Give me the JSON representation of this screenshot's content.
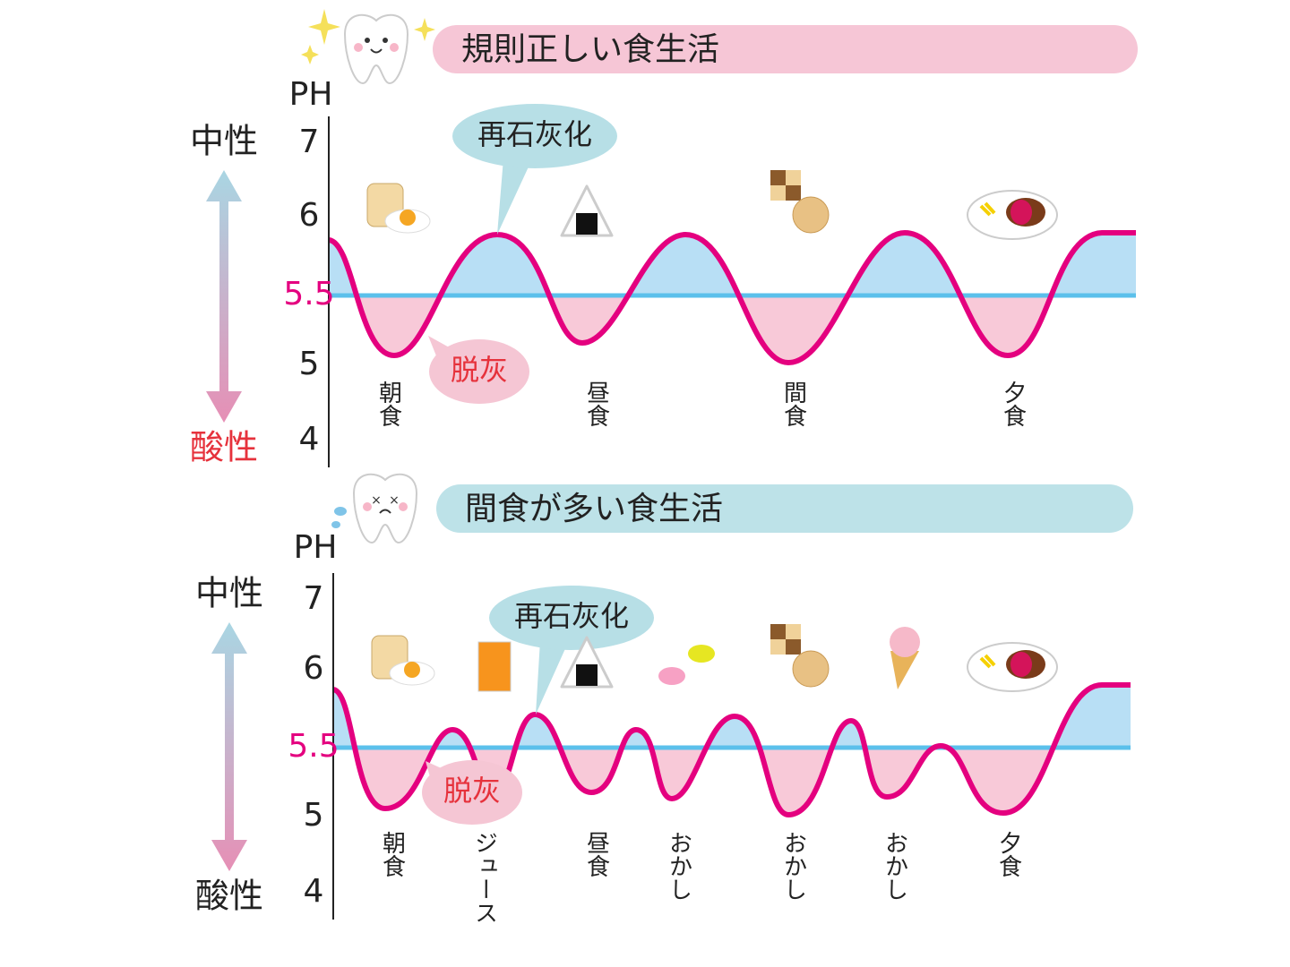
{
  "panels": [
    {
      "title": "規則正しい食生活",
      "y_unit": "PH",
      "neutral": "中性",
      "acidic": "酸性",
      "yticks": [
        "7",
        "6",
        "5.5",
        "5",
        "4"
      ],
      "remineralization": "再石灰化",
      "demineralization": "脱灰",
      "meals": [
        "朝食",
        "昼食",
        "間食",
        "夕食"
      ]
    },
    {
      "title": "間食が多い食生活",
      "y_unit": "PH",
      "neutral": "中性",
      "acidic": "酸性",
      "yticks": [
        "7",
        "6",
        "5.5",
        "5",
        "4"
      ],
      "remineralization": "再石灰化",
      "demineralization": "脱灰",
      "meals": [
        "朝食",
        "ジュース",
        "昼食",
        "おかし",
        "おかし",
        "おかし",
        "夕食"
      ]
    }
  ]
}
